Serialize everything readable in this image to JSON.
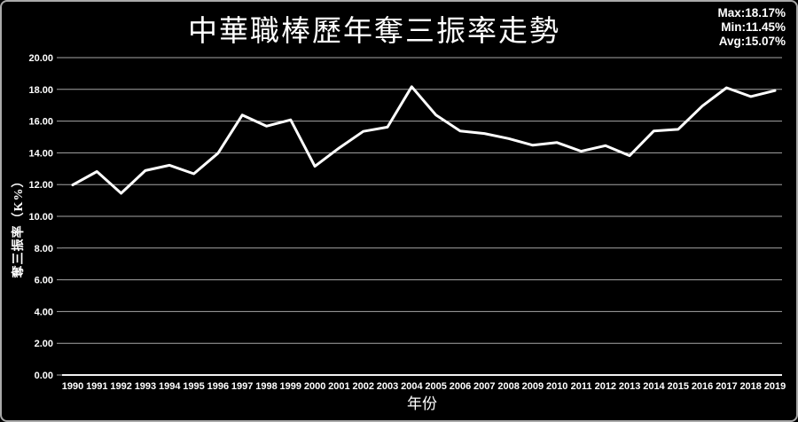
{
  "page": {
    "background": "#000000",
    "border_color": "#aaaaaa"
  },
  "header": {
    "title": "中華職棒歷年奪三振率走勢",
    "stats": {
      "max": "Max:18.17%",
      "min": "Min:11.45%",
      "avg": "Avg:15.07%"
    }
  },
  "chart_data": {
    "type": "line",
    "title": "中華職棒歷年奪三振率走勢",
    "xlabel": "年份",
    "ylabel": "奪三振率（K%）",
    "x": [
      1990,
      1991,
      1992,
      1993,
      1994,
      1995,
      1996,
      1997,
      1998,
      1999,
      2000,
      2001,
      2002,
      2003,
      2004,
      2005,
      2006,
      2007,
      2008,
      2009,
      2010,
      2011,
      2012,
      2013,
      2014,
      2015,
      2016,
      2017,
      2018,
      2019
    ],
    "series": [
      {
        "name": "奪三振率",
        "values": [
          11.98,
          12.82,
          11.45,
          12.88,
          13.22,
          12.68,
          13.98,
          16.38,
          15.68,
          16.08,
          13.15,
          14.3,
          15.35,
          15.62,
          18.17,
          16.38,
          15.38,
          15.22,
          14.9,
          14.48,
          14.65,
          14.1,
          14.45,
          13.82,
          15.38,
          15.48,
          16.95,
          18.1,
          17.55,
          17.92
        ]
      }
    ],
    "ylim": [
      0,
      20
    ],
    "ytick_step": 2,
    "grid": true,
    "legend": "none",
    "line_color": "#ffffff",
    "grid_color": "#a6a6a6",
    "axis_color": "#f2f2f2",
    "stats": {
      "max": 18.17,
      "min": 11.45,
      "avg": 15.07
    }
  }
}
